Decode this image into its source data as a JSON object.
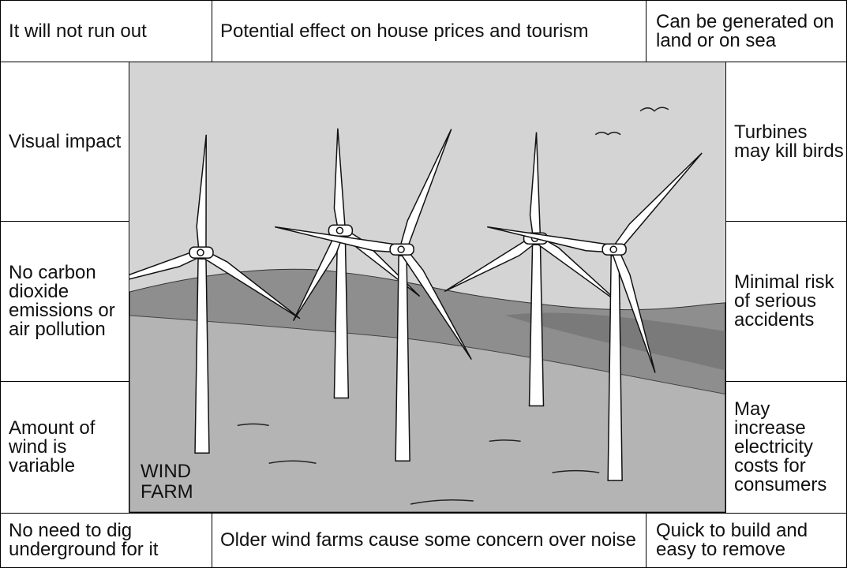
{
  "top": [
    "It will not run out",
    "Potential effect on house prices and tourism",
    "Can be generated on land or on sea"
  ],
  "left": [
    "Visual impact",
    "No carbon dioxide emissions or air pollution",
    "Amount of wind is variable"
  ],
  "right": [
    "Turbines may kill birds",
    "Minimal risk of serious accidents",
    "May increase electricity costs for consumers"
  ],
  "bottom": [
    "No need to dig underground for it",
    "Older wind farms cause some concern over noise",
    "Quick to build and easy to remove"
  ],
  "image_label": "WIND FARM"
}
